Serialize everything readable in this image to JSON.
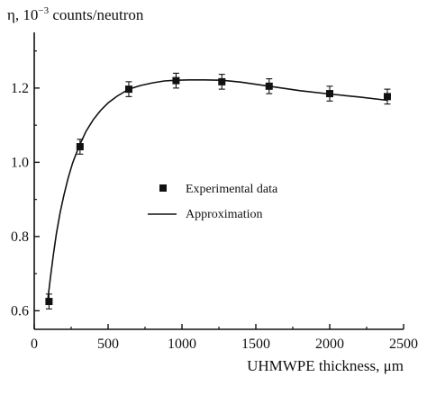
{
  "chart_data": {
    "type": "scatter",
    "title": "",
    "ylabel": {
      "prefix": "η, 10",
      "exponent": "−3",
      "suffix": " counts/neutron"
    },
    "xlabel": "UHMWPE thickness, μm",
    "xlim": [
      0,
      2500
    ],
    "ylim": [
      0.55,
      1.35
    ],
    "xticks": [
      0,
      500,
      1000,
      1500,
      2000,
      2500
    ],
    "yticks": [
      0.6,
      0.8,
      1.0,
      1.2
    ],
    "xtick_labels": [
      "0",
      "500",
      "1000",
      "1500",
      "2000",
      "2500"
    ],
    "ytick_labels": [
      "0.6",
      "0.8",
      "1.0",
      "1.2"
    ],
    "grid": false,
    "legend_position": "center",
    "series": [
      {
        "name": "Experimental data",
        "kind": "points",
        "marker": "square",
        "x": [
          100,
          310,
          640,
          960,
          1270,
          1590,
          2000,
          2390
        ],
        "y": [
          0.625,
          1.042,
          1.197,
          1.22,
          1.217,
          1.205,
          1.185,
          1.177
        ],
        "yerr": [
          0.02,
          0.02,
          0.02,
          0.02,
          0.02,
          0.02,
          0.02,
          0.02
        ]
      },
      {
        "name": "Approximation",
        "kind": "line",
        "x": [
          90,
          110,
          130,
          150,
          175,
          200,
          230,
          260,
          300,
          350,
          400,
          450,
          500,
          560,
          640,
          720,
          800,
          880,
          960,
          1050,
          1150,
          1270,
          1400,
          1590,
          1800,
          2000,
          2200,
          2390
        ],
        "y": [
          0.625,
          0.69,
          0.752,
          0.808,
          0.864,
          0.91,
          0.958,
          0.998,
          1.04,
          1.083,
          1.115,
          1.14,
          1.16,
          1.178,
          1.197,
          1.207,
          1.214,
          1.219,
          1.221,
          1.222,
          1.222,
          1.221,
          1.216,
          1.205,
          1.193,
          1.184,
          1.176,
          1.167
        ]
      }
    ],
    "colors": {
      "axis": "#111111",
      "marker": "#111111",
      "line": "#111111",
      "background": "#ffffff"
    }
  }
}
